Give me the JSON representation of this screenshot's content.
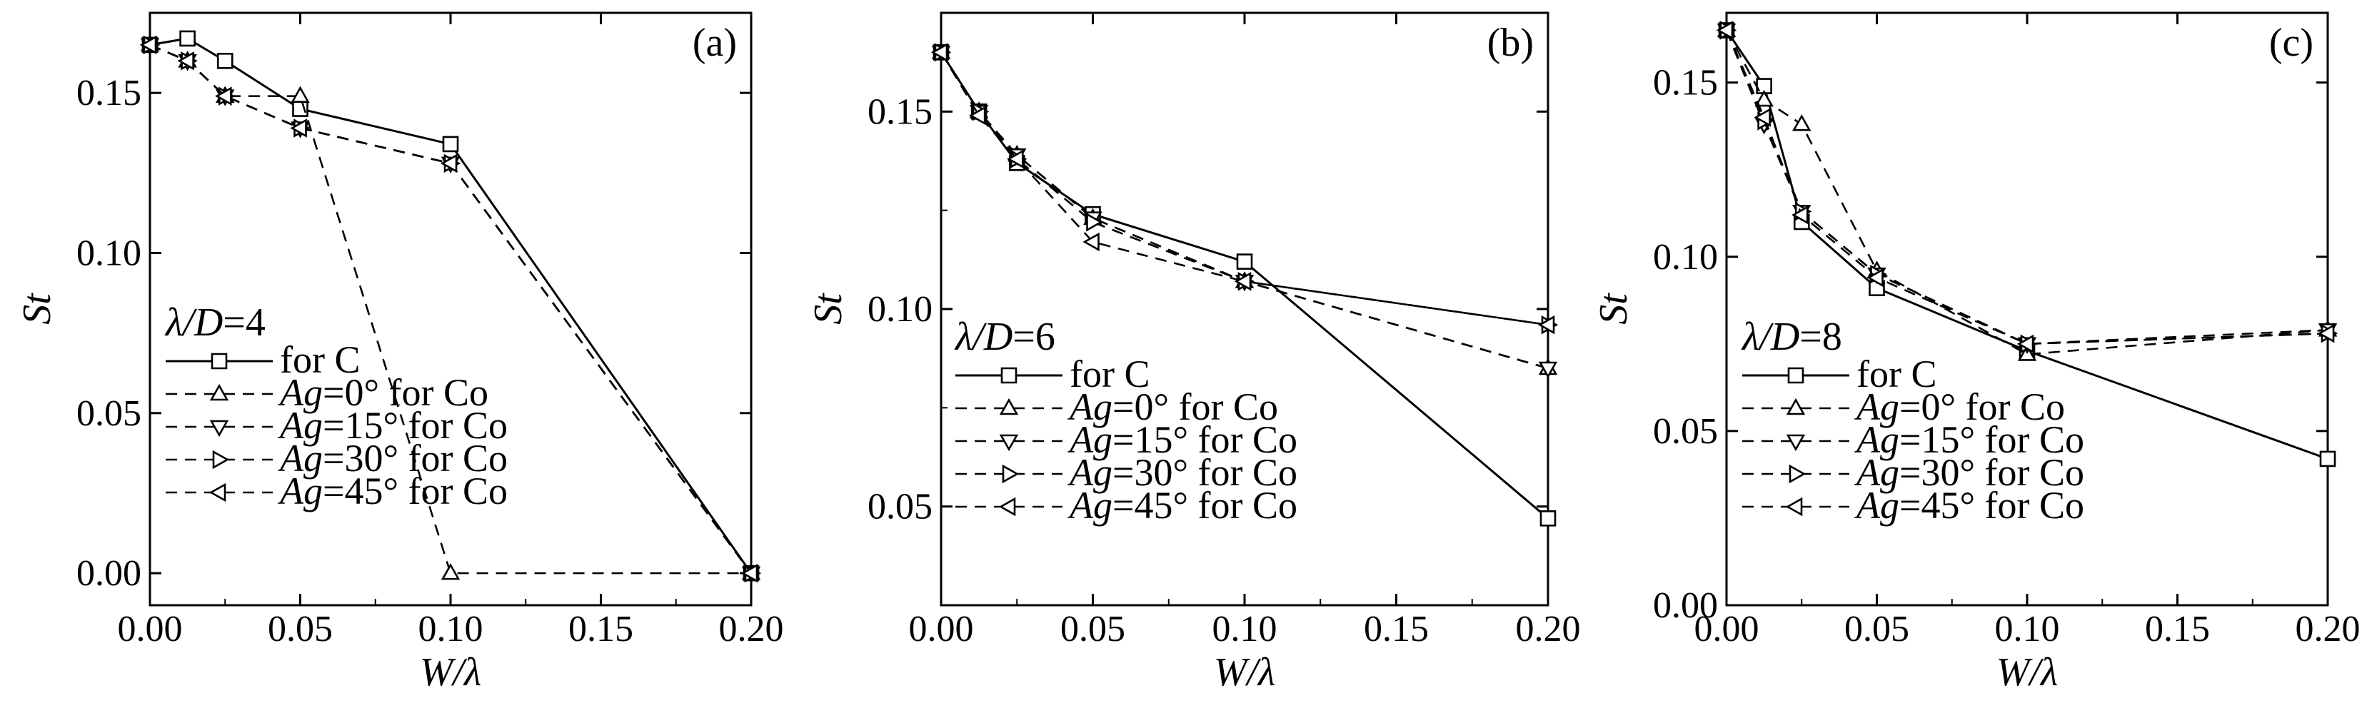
{
  "chart_data": [
    {
      "type": "line",
      "panel_label": "(a)",
      "xlabel": "W/λ",
      "ylabel": "St",
      "xlim": [
        0,
        0.2
      ],
      "ylim": [
        -0.01,
        0.175
      ],
      "xticks": [
        "0.00",
        "0.05",
        "0.10",
        "0.15",
        "0.20"
      ],
      "yticks": [
        "0.00",
        "0.05",
        "0.10",
        "0.15"
      ],
      "legend_title": {
        "lhs": "λ/D",
        "value": "=4"
      },
      "legend_placement": "lower-left",
      "grid": false,
      "series": [
        {
          "name": "for C",
          "marker": "square",
          "dash": "solid",
          "x": [
            0.0,
            0.0125,
            0.025,
            0.05,
            0.1,
            0.2
          ],
          "y": [
            0.165,
            0.167,
            0.16,
            0.145,
            0.134,
            0.0
          ]
        },
        {
          "name": "Ag=0° for Co",
          "marker": "triangle-up",
          "dash": "dashed",
          "x": [
            0.0,
            0.0125,
            0.025,
            0.05,
            0.1,
            0.2
          ],
          "y": [
            0.165,
            0.16,
            0.149,
            0.149,
            0.0,
            0.0
          ]
        },
        {
          "name": "Ag=15° for Co",
          "marker": "triangle-down",
          "dash": "dashed",
          "x": [
            0.0,
            0.0125,
            0.025,
            0.05,
            0.1,
            0.2
          ],
          "y": [
            0.165,
            0.16,
            0.149,
            0.139,
            0.128,
            0.0
          ]
        },
        {
          "name": "Ag=30° for Co",
          "marker": "triangle-right",
          "dash": "dashed",
          "x": [
            0.0,
            0.0125,
            0.025,
            0.05,
            0.1,
            0.2
          ],
          "y": [
            0.165,
            0.16,
            0.149,
            0.139,
            0.128,
            0.0
          ]
        },
        {
          "name": "Ag=45° for Co",
          "marker": "triangle-left",
          "dash": "dashed",
          "x": [
            0.0,
            0.0125,
            0.025,
            0.05,
            0.1,
            0.2
          ],
          "y": [
            0.165,
            0.16,
            0.149,
            0.139,
            0.128,
            0.0
          ]
        }
      ]
    },
    {
      "type": "line",
      "panel_label": "(b)",
      "xlabel": "W/λ",
      "ylabel": "St",
      "xlim": [
        0,
        0.2
      ],
      "ylim": [
        0.025,
        0.175
      ],
      "xticks": [
        "0.00",
        "0.05",
        "0.10",
        "0.15",
        "0.20"
      ],
      "yticks": [
        "0.05",
        "0.10",
        "0.15"
      ],
      "legend_title": {
        "lhs": "λ/D",
        "value": "=6"
      },
      "legend_placement": "lower-left",
      "grid": false,
      "series": [
        {
          "name": "for C",
          "marker": "square",
          "dash": "solid",
          "x": [
            0.0,
            0.0125,
            0.025,
            0.05,
            0.1,
            0.2
          ],
          "y": [
            0.165,
            0.15,
            0.137,
            0.124,
            0.112,
            0.047
          ]
        },
        {
          "name": "Ag=0° for Co",
          "marker": "triangle-up",
          "dash": "dashed",
          "x": [
            0.0,
            0.0125,
            0.025,
            0.05,
            0.1,
            0.2
          ],
          "y": [
            0.165,
            0.15,
            0.139,
            0.123,
            0.107,
            0.085
          ]
        },
        {
          "name": "Ag=15° for Co",
          "marker": "triangle-down",
          "dash": "dashed",
          "x": [
            0.0,
            0.0125,
            0.025,
            0.05,
            0.1,
            0.2
          ],
          "y": [
            0.165,
            0.15,
            0.139,
            0.123,
            0.107,
            0.085
          ]
        },
        {
          "name": "Ag=30° for Co",
          "marker": "triangle-right",
          "dash": "dashed",
          "x": [
            0.0,
            0.0125,
            0.025,
            0.05,
            0.1,
            0.2
          ],
          "y": [
            0.165,
            0.15,
            0.138,
            0.122,
            0.107,
            0.096
          ]
        },
        {
          "name": "Ag=45° for Co",
          "marker": "triangle-left",
          "dash": "dashed",
          "x": [
            0.0,
            0.0125,
            0.025,
            0.05,
            0.1,
            0.2
          ],
          "y": [
            0.165,
            0.149,
            0.138,
            0.117,
            0.107,
            0.096
          ]
        }
      ]
    },
    {
      "type": "line",
      "panel_label": "(c)",
      "xlabel": "W/λ",
      "ylabel": "St",
      "xlim": [
        0,
        0.2
      ],
      "ylim": [
        0,
        0.17
      ],
      "xticks": [
        "0.00",
        "0.05",
        "0.10",
        "0.15",
        "0.20"
      ],
      "yticks": [
        "0.00",
        "0.05",
        "0.10",
        "0.15"
      ],
      "legend_title": {
        "lhs": "λ/D",
        "value": "=8"
      },
      "legend_placement": "lower-left",
      "grid": false,
      "series": [
        {
          "name": "for C",
          "marker": "square",
          "dash": "solid",
          "x": [
            0.0,
            0.0125,
            0.025,
            0.05,
            0.1,
            0.2
          ],
          "y": [
            0.165,
            0.149,
            0.11,
            0.091,
            0.073,
            0.042
          ]
        },
        {
          "name": "Ag=0° for Co",
          "marker": "triangle-up",
          "dash": "dashed",
          "x": [
            0.0,
            0.0125,
            0.025,
            0.05,
            0.1,
            0.2
          ],
          "y": [
            0.165,
            0.145,
            0.138,
            0.096,
            0.072,
            0.079
          ]
        },
        {
          "name": "Ag=15° for Co",
          "marker": "triangle-down",
          "dash": "dashed",
          "x": [
            0.0,
            0.0125,
            0.025,
            0.05,
            0.1,
            0.2
          ],
          "y": [
            0.165,
            0.138,
            0.113,
            0.095,
            0.075,
            0.079
          ]
        },
        {
          "name": "Ag=30° for Co",
          "marker": "triangle-right",
          "dash": "dashed",
          "x": [
            0.0,
            0.0125,
            0.025,
            0.05,
            0.1,
            0.2
          ],
          "y": [
            0.165,
            0.139,
            0.113,
            0.095,
            0.075,
            0.078
          ]
        },
        {
          "name": "Ag=45° for Co",
          "marker": "triangle-left",
          "dash": "dashed",
          "x": [
            0.0,
            0.0125,
            0.025,
            0.05,
            0.1,
            0.2
          ],
          "y": [
            0.165,
            0.14,
            0.112,
            0.094,
            0.075,
            0.078
          ]
        }
      ]
    }
  ]
}
